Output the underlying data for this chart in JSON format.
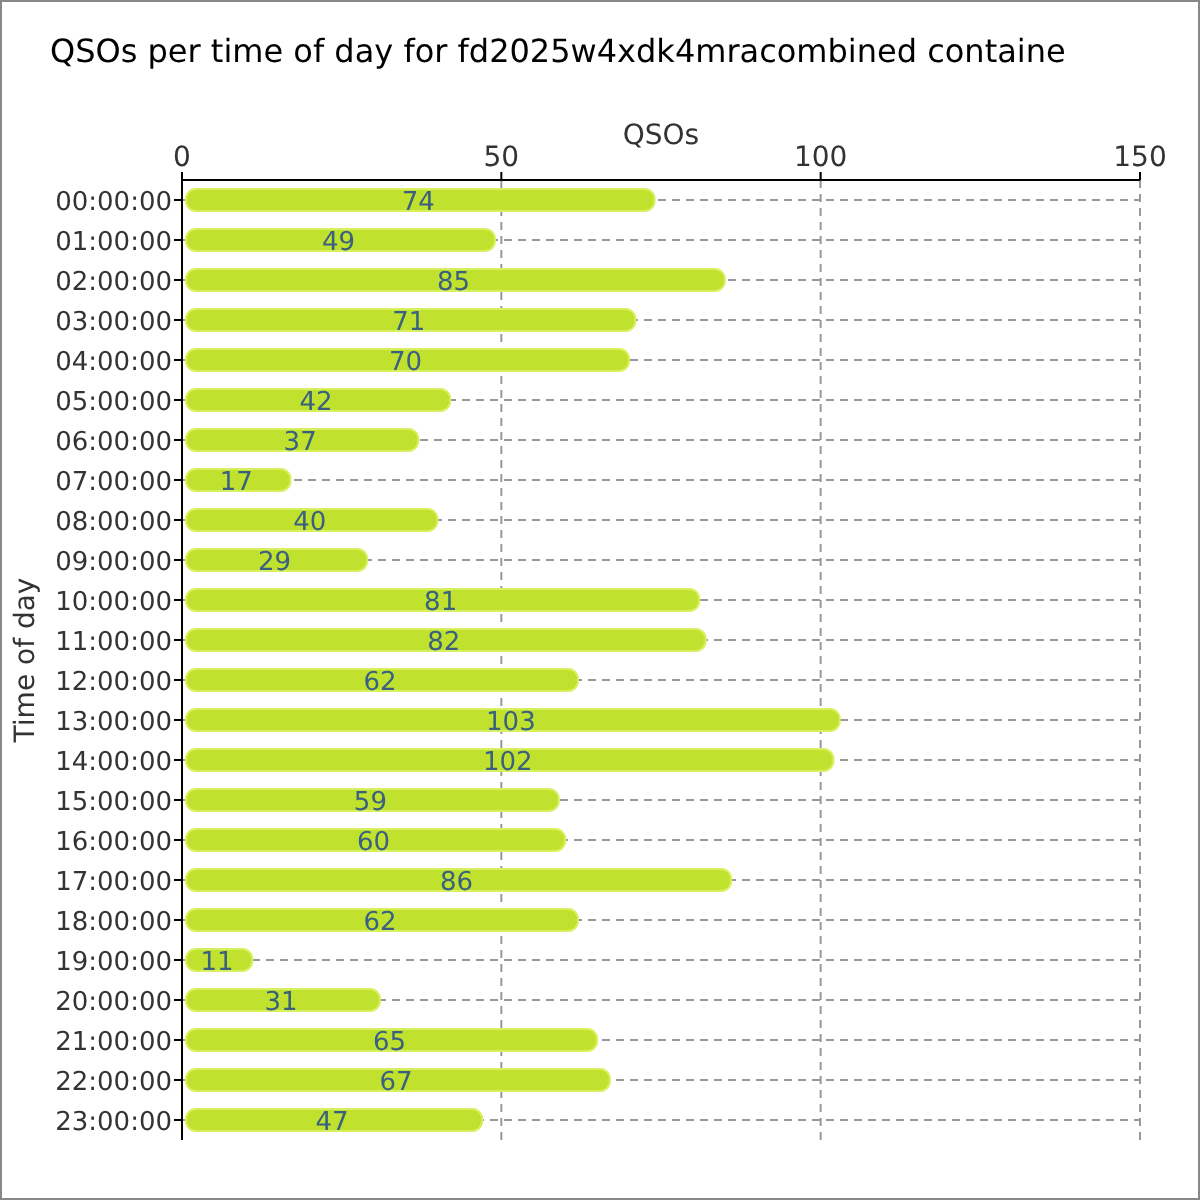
{
  "chart_data": {
    "type": "bar",
    "orientation": "horizontal",
    "title": "QSOs per time of day for fd2025w4xdk4mracombined containe",
    "xlabel": "QSOs",
    "ylabel": "Time of day",
    "categories": [
      "00:00:00",
      "01:00:00",
      "02:00:00",
      "03:00:00",
      "04:00:00",
      "05:00:00",
      "06:00:00",
      "07:00:00",
      "08:00:00",
      "09:00:00",
      "10:00:00",
      "11:00:00",
      "12:00:00",
      "13:00:00",
      "14:00:00",
      "15:00:00",
      "16:00:00",
      "17:00:00",
      "18:00:00",
      "19:00:00",
      "20:00:00",
      "21:00:00",
      "22:00:00",
      "23:00:00"
    ],
    "values": [
      74,
      49,
      85,
      71,
      70,
      42,
      37,
      17,
      40,
      29,
      81,
      82,
      62,
      103,
      102,
      59,
      60,
      86,
      62,
      11,
      31,
      65,
      67,
      47
    ],
    "color": "#c0e22e",
    "xlim": [
      0,
      150
    ],
    "xticks": [
      0,
      50,
      100,
      150
    ],
    "grid": true,
    "data_labels": true
  }
}
